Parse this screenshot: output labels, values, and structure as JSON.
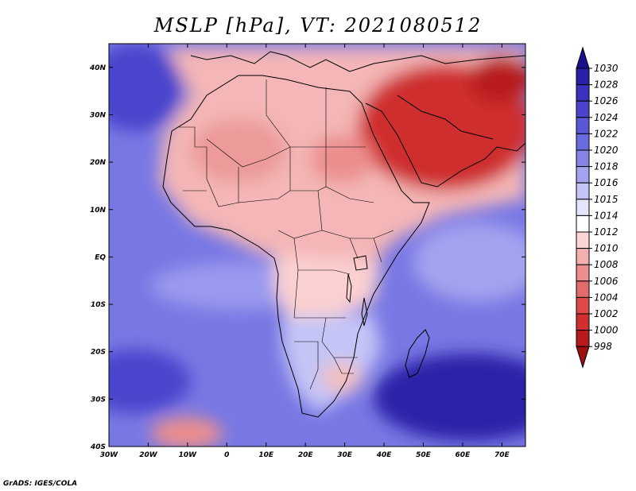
{
  "title": "MSLP [hPa], VT: 2021080512",
  "credit": "GrADS: IGES/COLA",
  "map": {
    "lon_range": [
      -30,
      76
    ],
    "lat_range": [
      -40,
      45
    ],
    "x_ticks": [
      "30W",
      "20W",
      "10W",
      "0",
      "10E",
      "20E",
      "30E",
      "40E",
      "50E",
      "60E",
      "70E"
    ],
    "x_tick_values": [
      -30,
      -20,
      -10,
      0,
      10,
      20,
      30,
      40,
      50,
      60,
      70
    ],
    "y_ticks": [
      "40S",
      "30S",
      "20S",
      "10S",
      "EQ",
      "10N",
      "20N",
      "30N",
      "40N"
    ],
    "y_tick_values": [
      -40,
      -30,
      -20,
      -10,
      0,
      10,
      20,
      30,
      40
    ]
  },
  "colorbar": {
    "levels": [
      "1030",
      "1028",
      "1026",
      "1024",
      "1022",
      "1020",
      "1018",
      "1016",
      "1015",
      "1014",
      "1012",
      "1010",
      "1008",
      "1006",
      "1004",
      "1002",
      "1000",
      "998"
    ],
    "colors": [
      "#1a0f8c",
      "#2b20a8",
      "#3a32bd",
      "#4a44cc",
      "#5a57d6",
      "#6b6be0",
      "#8585e8",
      "#a3a3f0",
      "#c4c4f6",
      "#e4e4fb",
      "#ffffff",
      "#fbd5d5",
      "#f3b0b0",
      "#ec8e8e",
      "#e46b6b",
      "#dc4a4a",
      "#cf2f2f",
      "#b81b1b",
      "#9e1010"
    ]
  }
}
